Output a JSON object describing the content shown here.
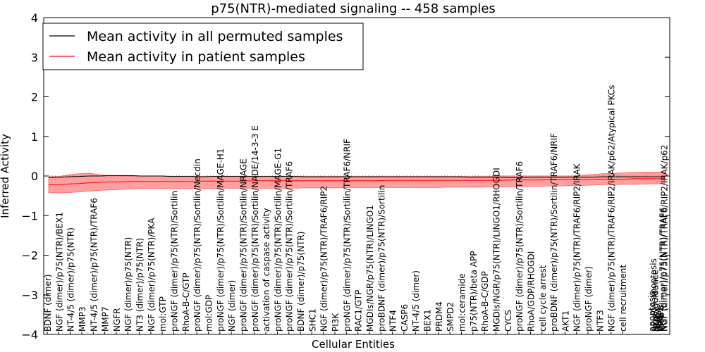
{
  "chart_data": {
    "type": "line",
    "title": "p75(NTR)-mediated signaling -- 458 samples",
    "xlabel": "Cellular Entities",
    "ylabel": "Inferred Activity",
    "ylim": [
      -4,
      4
    ],
    "yticks": [
      -4,
      -3,
      -2,
      -1,
      0,
      1,
      2,
      3,
      4
    ],
    "grid": false,
    "legend_position": "top-left",
    "series": [
      {
        "name": "Mean activity in all permuted samples",
        "color": "#000000"
      },
      {
        "name": "Mean activity in patient samples",
        "color": "#ff0000"
      }
    ],
    "band_color": "#ff8080",
    "entities": [
      "BDNF (dimer)",
      "NGF (dimer)/p75(NTR)/BEX1",
      "NT-4/5 (dimer)/p75(NTR)",
      "MMP3",
      "NT-4/5 (dimer)/p75(NTR)/TRAF6",
      "MMP7",
      "NGFR",
      "NGF (dimer)/p75(NTR)",
      "NT3 (dimer)/p75(NTR)",
      "NGF (dimer)/p75(NTR)/PKA",
      "mol:GTP",
      "proNGF (dimer)/p75(NTR)/Sortilin",
      "RhoA-B-C/GTP",
      "proNGF (dimer)/p75(NTR)/Sortilin/Necdin",
      "mol:GDP",
      "proNGF (dimer)/p75(NTR)/Sortilin/MAGE-H1",
      "NGF (dimer)",
      "proNGF (dimer)/p75(NTR)/Sortilin/NRAGE",
      "proNGF (dimer)/p75(NTR)/Sortilin/NADE/14-3-3 E",
      "activation of caspase activity",
      "proNGF (dimer)/p75(NTR)/Sortilin/MAGE-G1",
      "proNGF (dimer)/p75(NTR)/Sortilin/TRAF6",
      "BDNF (dimer)/p75(NTR)",
      "SHC1",
      "NGF (dimer)/p75(NTR)/TRAF6/RIP2",
      "PI3K",
      "proNGF (dimer)/p75(NTR)/Sortilin/TRAF6/NRIF",
      "RAC1/GTP",
      "MGDIs/NGR/p75(NTR)/LINGO1",
      "proBDNF (dimer)/p75(NTR)/Sortilin",
      "NTF4",
      "CASP6",
      "NT-4/5 (dimer)",
      "BEX1",
      "PRDM4",
      "SMPD2",
      "mol:ceramide",
      "p75(NTR)/beta APP",
      "RhoA-B-C/GDP",
      "MGDIs/NGR/p75(NTR)/LINGO1/RHOGDI",
      "CYCS",
      "proNGF (dimer)/p75(NTR)/Sortilin/TRAF6",
      "RhoA/GDP/RHOGDI",
      "cell cycle arrest",
      "proBDNF (dimer)/p75(NTR)/Sortilin/TRAF6/NRIF",
      "AKT1",
      "NGF (dimer)/p75(NTR)/TRAF6/RIP2/IRAK",
      "proNGF (dimer)",
      "NTF3",
      "NGF (dimer)/p75(NTR)/TRAF6/RIP2/IRAK/p62/Atypical PKCs",
      "cell recruitment"
    ],
    "overlap_labels": [
      "apoptosis",
      "neuron apoptosis",
      "axon guidance",
      "NGF",
      "RHOA",
      "IRAK1",
      "TRAF6",
      "NGF (dimer)/p75(NTR)/TRAF6",
      "NGF (dimer)/p75(NTR)/TRAF6/RIP2/IRAK/p62"
    ],
    "x_index": [
      0,
      1,
      2,
      3,
      4,
      5,
      6,
      7,
      8,
      9,
      10,
      11,
      12,
      13,
      14,
      15,
      16,
      17,
      18,
      19,
      20,
      21,
      22,
      23,
      24,
      25,
      26,
      27,
      28,
      29,
      30,
      31,
      32,
      33,
      34,
      35,
      36,
      37,
      38,
      39,
      40,
      41,
      42,
      43,
      44,
      45,
      46,
      47,
      48,
      49,
      50,
      51,
      52,
      53,
      54,
      55,
      56,
      57,
      58,
      59,
      60
    ],
    "xlim": [
      0,
      60
    ],
    "permuted_mean": [
      -0.04,
      -0.03,
      -0.02,
      -0.01,
      0.0,
      0.0,
      0.01,
      0.01,
      0.01,
      0.0,
      0.0,
      0.0,
      -0.01,
      -0.01,
      -0.01,
      -0.02,
      -0.01,
      -0.01,
      -0.01,
      -0.01,
      -0.01,
      -0.01,
      -0.01,
      -0.01,
      -0.01,
      -0.02,
      -0.02,
      -0.02,
      -0.02,
      -0.02,
      -0.02,
      -0.02,
      -0.02,
      -0.02,
      -0.02,
      -0.02,
      -0.02,
      -0.02,
      -0.02,
      -0.02,
      -0.02,
      -0.03,
      -0.03,
      -0.03,
      -0.03,
      -0.04,
      -0.04,
      -0.03,
      -0.03,
      -0.03,
      -0.03,
      -0.03,
      -0.03,
      -0.03,
      -0.02,
      -0.02,
      -0.02,
      -0.02,
      -0.02,
      -0.02,
      -0.02
    ],
    "patient_mean": [
      -0.22,
      -0.22,
      -0.2,
      -0.19,
      -0.17,
      -0.16,
      -0.15,
      -0.15,
      -0.14,
      -0.14,
      -0.14,
      -0.14,
      -0.14,
      -0.14,
      -0.14,
      -0.13,
      -0.13,
      -0.13,
      -0.13,
      -0.13,
      -0.12,
      -0.12,
      -0.12,
      -0.12,
      -0.12,
      -0.12,
      -0.12,
      -0.12,
      -0.12,
      -0.12,
      -0.12,
      -0.12,
      -0.12,
      -0.11,
      -0.11,
      -0.11,
      -0.11,
      -0.11,
      -0.11,
      -0.11,
      -0.11,
      -0.11,
      -0.11,
      -0.11,
      -0.11,
      -0.1,
      -0.1,
      -0.1,
      -0.1,
      -0.09,
      -0.09,
      -0.09,
      -0.09,
      -0.08,
      -0.08,
      -0.08,
      -0.08,
      -0.07,
      -0.07,
      -0.07,
      -0.07
    ],
    "band_upper": [
      -0.02,
      -0.01,
      0.03,
      0.06,
      0.07,
      0.03,
      0.01,
      0.0,
      0.0,
      0.0,
      0.0,
      0.0,
      -0.01,
      -0.01,
      -0.01,
      -0.01,
      -0.01,
      -0.01,
      -0.01,
      -0.01,
      -0.01,
      -0.01,
      -0.01,
      -0.01,
      -0.01,
      -0.01,
      -0.01,
      -0.01,
      -0.01,
      -0.01,
      -0.01,
      -0.01,
      -0.01,
      -0.01,
      -0.01,
      -0.01,
      -0.01,
      -0.01,
      -0.01,
      -0.01,
      -0.01,
      -0.01,
      -0.01,
      -0.01,
      0.0,
      0.0,
      0.0,
      0.0,
      0.0,
      0.0,
      0.0,
      0.0,
      0.02,
      0.04,
      0.06,
      0.07,
      0.08,
      0.09,
      0.1,
      0.1,
      0.1
    ],
    "band_lower": [
      -0.42,
      -0.43,
      -0.42,
      -0.4,
      -0.38,
      -0.36,
      -0.35,
      -0.34,
      -0.33,
      -0.32,
      -0.32,
      -0.32,
      -0.32,
      -0.32,
      -0.32,
      -0.32,
      -0.32,
      -0.31,
      -0.31,
      -0.31,
      -0.31,
      -0.31,
      -0.31,
      -0.31,
      -0.31,
      -0.3,
      -0.3,
      -0.3,
      -0.3,
      -0.29,
      -0.29,
      -0.29,
      -0.29,
      -0.29,
      -0.29,
      -0.29,
      -0.29,
      -0.29,
      -0.29,
      -0.28,
      -0.28,
      -0.28,
      -0.28,
      -0.27,
      -0.27,
      -0.27,
      -0.27,
      -0.26,
      -0.26,
      -0.25,
      -0.25,
      -0.24,
      -0.24,
      -0.23,
      -0.22,
      -0.22,
      -0.21,
      -0.21,
      -0.2,
      -0.2,
      -0.19
    ]
  }
}
